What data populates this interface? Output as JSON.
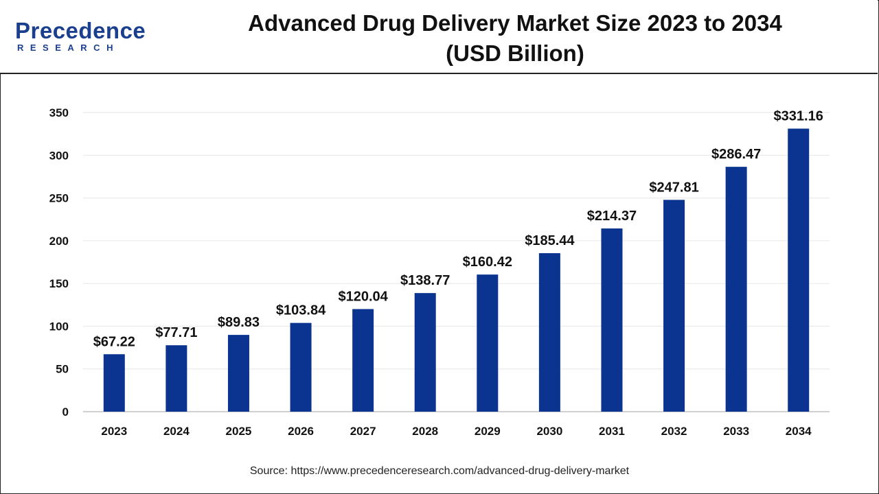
{
  "header": {
    "logo_word": "Precedence",
    "logo_sub": "RESEARCH",
    "title_line1": "Advanced Drug Delivery Market Size 2023 to 2034",
    "title_line2": "(USD Billion)"
  },
  "source": "Source: https://www.precedenceresearch.com/advanced-drug-delivery-market",
  "colors": {
    "bar": "#0b3490",
    "brand": "#1a3f8f"
  },
  "chart_data": {
    "type": "bar",
    "title": "Advanced Drug Delivery Market Size 2023 to 2034 (USD Billion)",
    "xlabel": "",
    "ylabel": "",
    "categories": [
      "2023",
      "2024",
      "2025",
      "2026",
      "2027",
      "2028",
      "2029",
      "2030",
      "2031",
      "2032",
      "2033",
      "2034"
    ],
    "values": [
      67.22,
      77.71,
      89.83,
      103.84,
      120.04,
      138.77,
      160.42,
      185.44,
      214.37,
      247.81,
      286.47,
      331.16
    ],
    "data_labels": [
      "$67.22",
      "$77.71",
      "$89.83",
      "$103.84",
      "$120.04",
      "$138.77",
      "$160.42",
      "$185.44",
      "$214.37",
      "$247.81",
      "$286.47",
      "$331.16"
    ],
    "yticks": [
      0,
      50,
      100,
      150,
      200,
      250,
      300,
      350
    ],
    "ylim": [
      0,
      350
    ],
    "grid": true,
    "legend": "none"
  }
}
